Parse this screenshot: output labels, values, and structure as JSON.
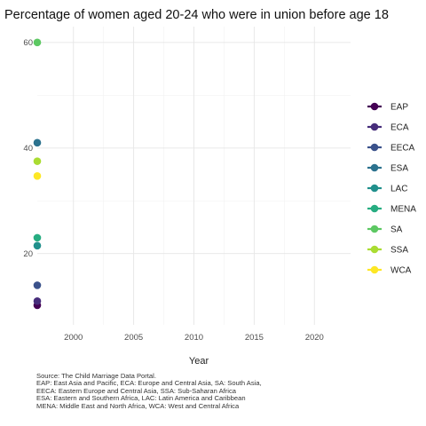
{
  "chart_data": {
    "type": "scatter",
    "title": "Percentage of women aged 20-24 who were in union before age 18",
    "xlabel": "Year",
    "ylabel": "",
    "xlim": [
      1997,
      2023
    ],
    "ylim": [
      6.5,
      63
    ],
    "x_ticks": [
      2000,
      2005,
      2010,
      2015,
      2020
    ],
    "y_ticks": [
      20,
      40,
      60
    ],
    "grid": true,
    "legend_position": "right",
    "series": [
      {
        "name": "EAP",
        "color": "#440154",
        "points": [
          {
            "x": 1997,
            "y": 10.2
          }
        ]
      },
      {
        "name": "ECA",
        "color": "#472D7B",
        "points": [
          {
            "x": 1997,
            "y": 11.0
          }
        ]
      },
      {
        "name": "EECA",
        "color": "#3B528B",
        "points": [
          {
            "x": 1997,
            "y": 14.0
          }
        ]
      },
      {
        "name": "ESA",
        "color": "#2C728E",
        "points": [
          {
            "x": 1997,
            "y": 41.0
          }
        ]
      },
      {
        "name": "LAC",
        "color": "#21908C",
        "points": [
          {
            "x": 1997,
            "y": 21.5
          }
        ]
      },
      {
        "name": "MENA",
        "color": "#27AD81",
        "points": [
          {
            "x": 1997,
            "y": 23.0
          }
        ]
      },
      {
        "name": "SA",
        "color": "#5DC863",
        "points": [
          {
            "x": 1997,
            "y": 60.0
          }
        ]
      },
      {
        "name": "SSA",
        "color": "#AADC32",
        "points": [
          {
            "x": 1997,
            "y": 37.5
          }
        ]
      },
      {
        "name": "WCA",
        "color": "#FDE725",
        "points": [
          {
            "x": 1997,
            "y": 34.7
          }
        ]
      }
    ]
  },
  "source_lines": [
    "Source: The Child Marriage Data Portal.",
    "EAP: East Asia and Pacific, ECA: Europe and Central Asia, SA: South Asia,",
    "EECA: Eastern Europe and Central Asia, SSA: Sub-Saharan Africa",
    "ESA: Eastern and Southern Africa, LAC: Latin America and Caribbean",
    "MENA: Middle East and North Africa, WCA: West and Central Africa"
  ]
}
